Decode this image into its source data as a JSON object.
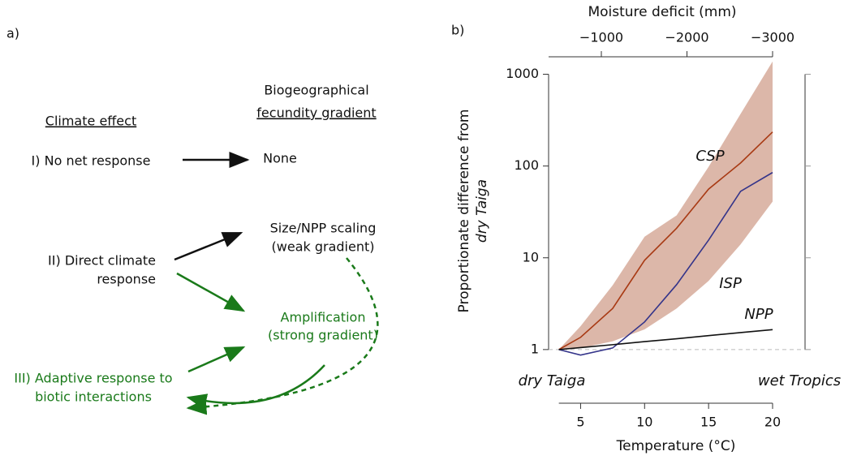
{
  "panel_a": {
    "label": "a)",
    "climate_header": "Climate effect",
    "gradient_header": [
      "Biogeographical",
      "fecundity gradient"
    ],
    "effects": [
      [
        "I) No net response"
      ],
      [
        "II) Direct climate",
        "response"
      ],
      [
        "III) Adaptive response to",
        "biotic interactions"
      ]
    ],
    "outcomes": [
      [
        "None"
      ],
      [
        "Size/NPP scaling",
        "(weak gradient)"
      ],
      [
        "Amplification",
        "(strong gradient)"
      ]
    ]
  },
  "chart_data": {
    "type": "line",
    "panel_label": "b)",
    "xlabel": "Temperature (°C)",
    "x2label": "Moisture deficit (mm)",
    "ylabel": [
      "Proportionate difference from",
      "dry Taiga"
    ],
    "annotations": [
      "dry Taiga",
      "wet Tropics"
    ],
    "x": [
      3.3,
      5,
      7.5,
      10,
      12.5,
      15,
      17.5,
      20
    ],
    "xlim": [
      2.5,
      20
    ],
    "xticks": [
      5,
      10,
      15,
      20
    ],
    "x2lim": [
      -384,
      -3000
    ],
    "x2ticks": [
      {
        "value": -1000,
        "label": "−1000"
      },
      {
        "value": -2000,
        "label": "−2000"
      },
      {
        "value": -3000,
        "label": "−3000"
      }
    ],
    "log_y": true,
    "ylim": [
      0.75,
      1400
    ],
    "yticks": [
      1,
      10,
      100,
      1000
    ],
    "reference_line": 1,
    "band": {
      "color": "#dcb7a9",
      "lower": [
        1,
        1.04,
        1.23,
        1.66,
        2.8,
        5.6,
        14,
        41
      ],
      "upper": [
        1,
        1.8,
        5,
        17,
        29,
        98,
        370,
        1380
      ]
    },
    "series": [
      {
        "name": "CSP",
        "color": "#a83a14",
        "values": [
          1,
          1.36,
          2.8,
          9.4,
          21,
          56,
          108,
          235
        ]
      },
      {
        "name": "ISP",
        "color": "#34348a",
        "values": [
          1,
          0.87,
          1.04,
          2.0,
          5.1,
          15.6,
          53,
          85
        ]
      },
      {
        "name": "NPP",
        "color": "#111111",
        "values": [
          1,
          1.05,
          1.13,
          1.22,
          1.31,
          1.42,
          1.53,
          1.65
        ]
      }
    ]
  }
}
